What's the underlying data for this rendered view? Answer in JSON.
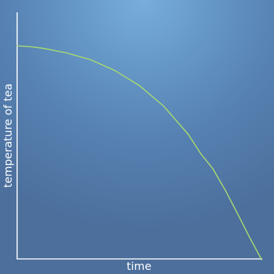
{
  "colors": {
    "line": "#a8d970",
    "axes": "#ffffff"
  },
  "chart_data": {
    "type": "line",
    "title": "",
    "xlabel": "time",
    "ylabel": "temperature of tea",
    "grid": false,
    "legend": "none",
    "xticks": [],
    "yticks": [],
    "xlim": [
      0,
      100
    ],
    "ylim": [
      0,
      100
    ],
    "series": [
      {
        "x": [
          0,
          5,
          10,
          20,
          30,
          40,
          50,
          60,
          70,
          75,
          80,
          85,
          90,
          95,
          100
        ],
        "y": [
          86.4,
          86.1,
          85.5,
          83.6,
          80.8,
          76.4,
          70.3,
          61.9,
          50.5,
          42.8,
          36.6,
          28.1,
          18.6,
          8.9,
          -0.3
        ]
      }
    ]
  }
}
